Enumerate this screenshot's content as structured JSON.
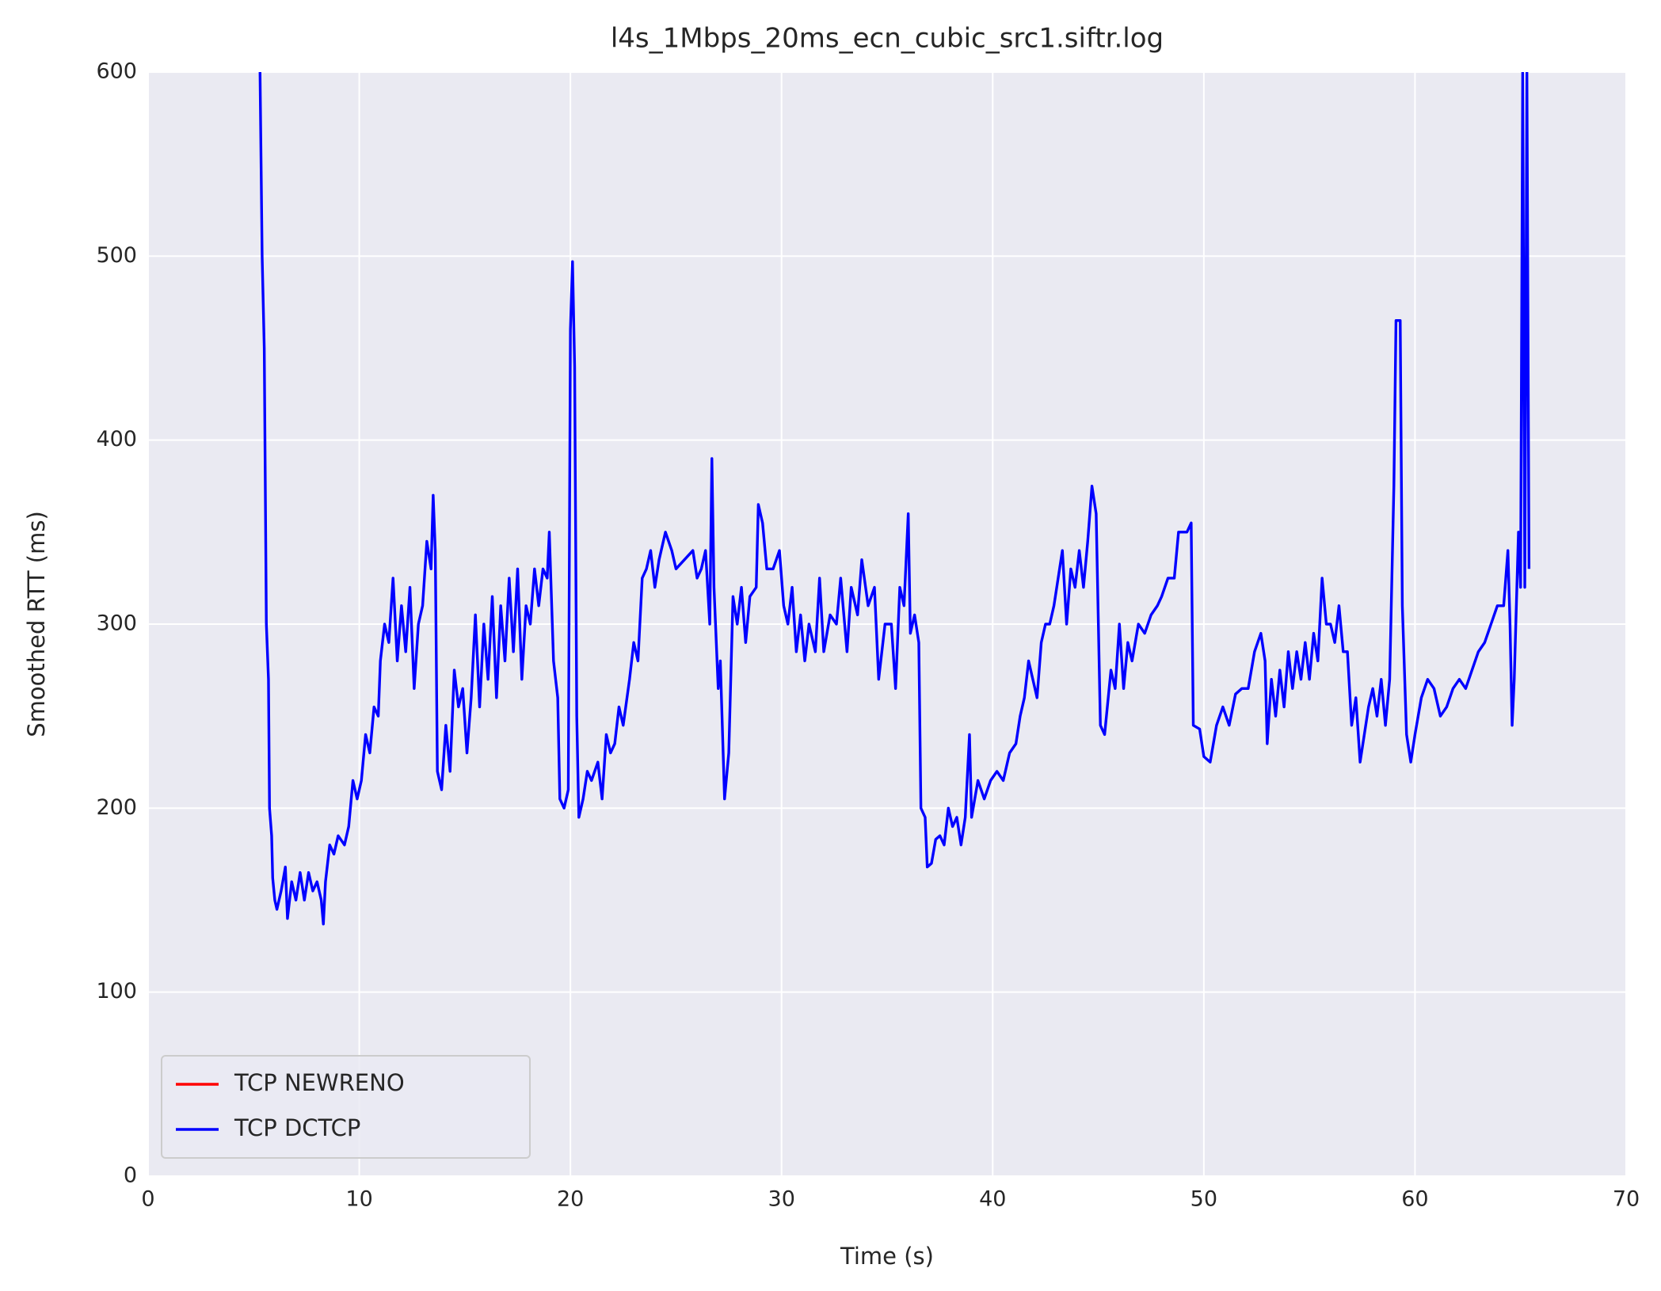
{
  "chart_data": {
    "type": "line",
    "title": "l4s_1Mbps_20ms_ecn_cubic_src1.siftr.log",
    "x_label": "Time (s)",
    "y_label": "Smoothed RTT (ms)",
    "xlim": [
      0,
      70
    ],
    "ylim": [
      0,
      600
    ],
    "xticks": [
      0,
      10,
      20,
      30,
      40,
      50,
      60,
      70
    ],
    "yticks": [
      0,
      100,
      200,
      300,
      400,
      500,
      600
    ],
    "grid": true,
    "legend_position": "lower left",
    "series": [
      {
        "name": "TCP NEWRENO",
        "color": "#ff0000",
        "x": [],
        "values": []
      },
      {
        "name": "TCP DCTCP",
        "color": "#0000ff",
        "x": [
          5.3,
          5.4,
          5.5,
          5.6,
          5.7,
          5.75,
          5.85,
          5.9,
          6.0,
          6.1,
          6.3,
          6.5,
          6.6,
          6.8,
          7.0,
          7.2,
          7.4,
          7.6,
          7.8,
          8.0,
          8.2,
          8.3,
          8.4,
          8.6,
          8.8,
          9.0,
          9.3,
          9.5,
          9.7,
          9.9,
          10.1,
          10.3,
          10.5,
          10.7,
          10.9,
          11.0,
          11.2,
          11.4,
          11.6,
          11.8,
          12.0,
          12.2,
          12.4,
          12.6,
          12.8,
          13.0,
          13.2,
          13.4,
          13.5,
          13.6,
          13.7,
          13.9,
          14.1,
          14.3,
          14.5,
          14.7,
          14.9,
          15.1,
          15.3,
          15.5,
          15.7,
          15.9,
          16.1,
          16.3,
          16.5,
          16.7,
          16.9,
          17.1,
          17.3,
          17.5,
          17.7,
          17.9,
          18.1,
          18.3,
          18.5,
          18.7,
          18.9,
          19.0,
          19.2,
          19.4,
          19.5,
          19.7,
          19.9,
          20.0,
          20.1,
          20.2,
          20.3,
          20.4,
          20.6,
          20.8,
          21.0,
          21.3,
          21.5,
          21.7,
          21.9,
          22.1,
          22.3,
          22.5,
          22.8,
          23.0,
          23.2,
          23.4,
          23.6,
          23.8,
          24.0,
          24.2,
          24.5,
          24.8,
          25.0,
          25.4,
          25.8,
          26.0,
          26.2,
          26.4,
          26.6,
          26.7,
          26.8,
          27.0,
          27.1,
          27.3,
          27.5,
          27.7,
          27.9,
          28.1,
          28.3,
          28.5,
          28.8,
          28.9,
          29.1,
          29.3,
          29.6,
          29.9,
          30.1,
          30.3,
          30.5,
          30.7,
          30.9,
          31.1,
          31.3,
          31.6,
          31.8,
          32.0,
          32.3,
          32.6,
          32.8,
          33.1,
          33.3,
          33.6,
          33.8,
          34.1,
          34.4,
          34.6,
          34.9,
          35.2,
          35.4,
          35.6,
          35.8,
          36.0,
          36.1,
          36.3,
          36.5,
          36.6,
          36.8,
          36.9,
          37.1,
          37.3,
          37.5,
          37.7,
          37.9,
          38.1,
          38.3,
          38.5,
          38.7,
          38.9,
          39.0,
          39.3,
          39.6,
          39.9,
          40.2,
          40.5,
          40.8,
          41.1,
          41.3,
          41.5,
          41.7,
          41.9,
          42.1,
          42.3,
          42.5,
          42.7,
          42.9,
          43.1,
          43.3,
          43.5,
          43.7,
          43.9,
          44.1,
          44.3,
          44.5,
          44.7,
          44.9,
          45.1,
          45.3,
          45.6,
          45.8,
          46.0,
          46.2,
          46.4,
          46.6,
          46.9,
          47.2,
          47.5,
          47.8,
          48.0,
          48.3,
          48.6,
          48.8,
          49.0,
          49.2,
          49.4,
          49.5,
          49.8,
          50.0,
          50.3,
          50.6,
          50.9,
          51.2,
          51.5,
          51.8,
          52.1,
          52.4,
          52.7,
          52.9,
          53.0,
          53.2,
          53.4,
          53.6,
          53.8,
          54.0,
          54.2,
          54.4,
          54.6,
          54.8,
          55.0,
          55.2,
          55.4,
          55.6,
          55.8,
          56.0,
          56.2,
          56.4,
          56.6,
          56.8,
          57.0,
          57.2,
          57.4,
          57.6,
          57.8,
          58.0,
          58.2,
          58.4,
          58.6,
          58.8,
          59.0,
          59.1,
          59.3,
          59.4,
          59.6,
          59.8,
          60.0,
          60.3,
          60.6,
          60.9,
          61.2,
          61.5,
          61.8,
          62.1,
          62.4,
          62.7,
          63.0,
          63.3,
          63.6,
          63.9,
          64.2,
          64.4,
          64.5,
          64.6,
          64.7,
          64.9,
          65.0,
          65.1,
          65.2,
          65.3,
          65.4
        ],
        "values": [
          600,
          500,
          450,
          300,
          270,
          200,
          185,
          162,
          150,
          145,
          155,
          168,
          140,
          160,
          150,
          165,
          150,
          165,
          155,
          160,
          150,
          137,
          160,
          180,
          175,
          185,
          180,
          190,
          215,
          205,
          215,
          240,
          230,
          255,
          250,
          280,
          300,
          290,
          325,
          280,
          310,
          285,
          320,
          265,
          300,
          310,
          345,
          330,
          370,
          340,
          220,
          210,
          245,
          220,
          275,
          255,
          265,
          230,
          260,
          305,
          255,
          300,
          270,
          315,
          260,
          310,
          280,
          325,
          285,
          330,
          270,
          310,
          300,
          330,
          310,
          330,
          325,
          350,
          280,
          260,
          205,
          200,
          210,
          460,
          497,
          440,
          250,
          195,
          205,
          220,
          215,
          225,
          205,
          240,
          230,
          235,
          255,
          245,
          270,
          290,
          280,
          325,
          330,
          340,
          320,
          335,
          350,
          340,
          330,
          335,
          340,
          325,
          330,
          340,
          300,
          390,
          320,
          265,
          280,
          205,
          230,
          315,
          300,
          320,
          290,
          315,
          320,
          365,
          355,
          330,
          330,
          340,
          310,
          300,
          320,
          285,
          305,
          280,
          300,
          285,
          325,
          285,
          305,
          300,
          325,
          285,
          320,
          305,
          335,
          310,
          320,
          270,
          300,
          300,
          265,
          320,
          310,
          360,
          295,
          305,
          290,
          200,
          195,
          168,
          170,
          183,
          185,
          180,
          200,
          190,
          195,
          180,
          195,
          240,
          195,
          215,
          205,
          215,
          220,
          215,
          230,
          235,
          250,
          260,
          280,
          270,
          260,
          290,
          300,
          300,
          310,
          325,
          340,
          300,
          330,
          320,
          340,
          320,
          345,
          375,
          360,
          245,
          240,
          275,
          265,
          300,
          265,
          290,
          280,
          300,
          295,
          305,
          310,
          315,
          325,
          325,
          350,
          350,
          350,
          355,
          245,
          243,
          228,
          225,
          245,
          255,
          245,
          262,
          265,
          265,
          285,
          295,
          280,
          235,
          270,
          250,
          275,
          255,
          285,
          265,
          285,
          270,
          290,
          270,
          295,
          280,
          325,
          300,
          300,
          290,
          310,
          285,
          285,
          245,
          260,
          225,
          240,
          255,
          265,
          250,
          270,
          245,
          270,
          375,
          465,
          465,
          310,
          240,
          225,
          240,
          260,
          270,
          265,
          250,
          255,
          265,
          270,
          265,
          275,
          285,
          290,
          300,
          310,
          310,
          340,
          300,
          245,
          270,
          350,
          320,
          600,
          320,
          600,
          330
        ]
      }
    ]
  }
}
